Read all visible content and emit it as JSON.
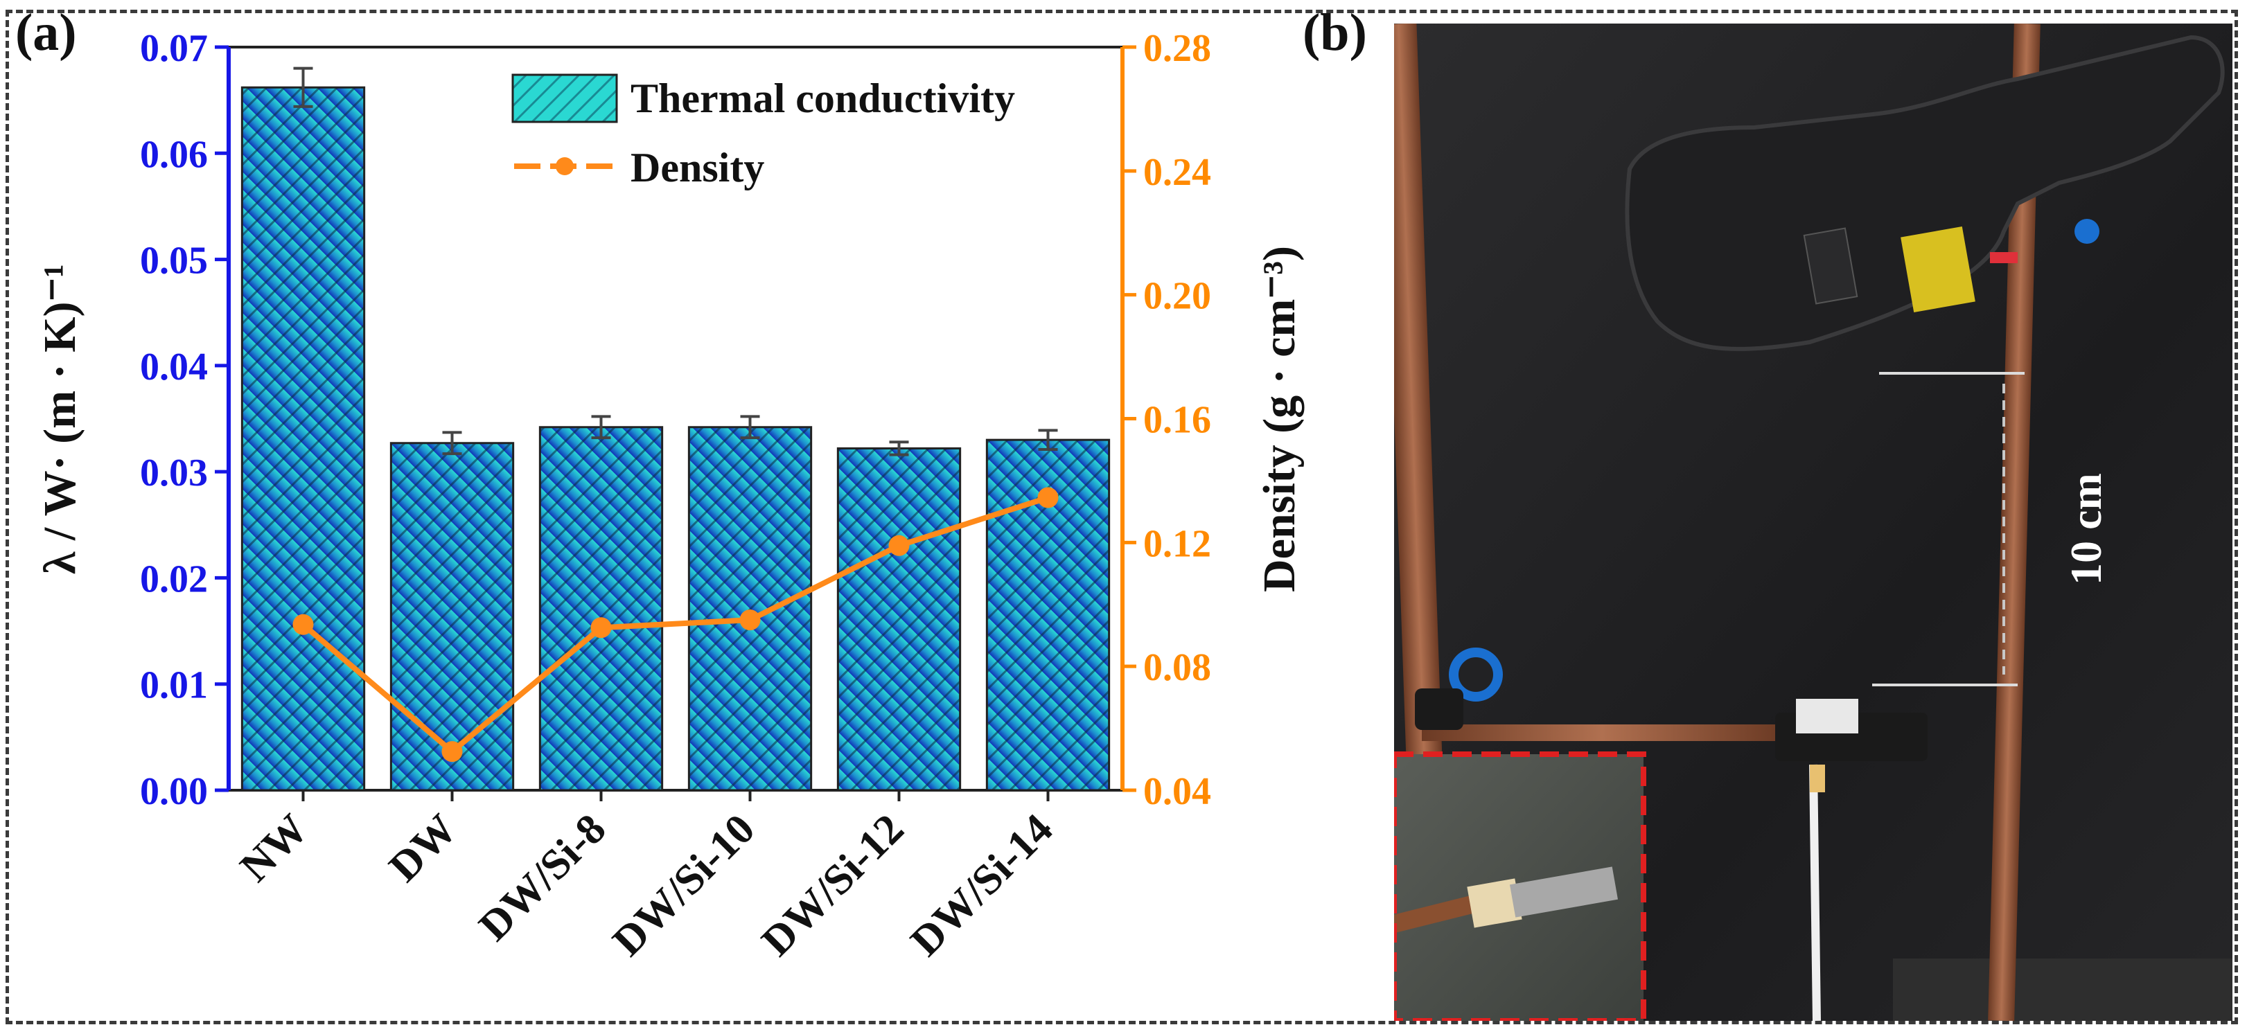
{
  "panels": {
    "a_label": "(a)",
    "b_label": "(b)"
  },
  "colors": {
    "bar_fill_top": "#2ad8d2",
    "bar_fill_bottom": "#1234b8",
    "bar_hatch": "#0a2a40",
    "left_axis": "#1616e6",
    "right_axis": "#ff8a00",
    "density_line": "#ff8a1a",
    "error_bar": "#444444"
  },
  "chart_data": {
    "type": "bar",
    "categories": [
      "NW",
      "DW",
      "DW/Si-8",
      "DW/Si-10",
      "DW/Si-12",
      "DW/Si-14"
    ],
    "series": [
      {
        "name": "Thermal conductivity",
        "type": "bar",
        "axis": "left",
        "values": [
          0.0662,
          0.0327,
          0.0342,
          0.0342,
          0.0322,
          0.033
        ],
        "errors": [
          0.0018,
          0.001,
          0.001,
          0.001,
          0.0006,
          0.0009
        ]
      },
      {
        "name": "Density",
        "type": "line",
        "axis": "right",
        "values": [
          0.0935,
          0.0525,
          0.0925,
          0.095,
          0.119,
          0.1345
        ]
      }
    ],
    "ylabel": "λ / W· (m · K)⁻¹",
    "y2label": "Density (g · cm⁻³)",
    "ylim": [
      0,
      0.07
    ],
    "y2lim": [
      0.04,
      0.28
    ],
    "yticks": [
      "0.00",
      "0.01",
      "0.02",
      "0.03",
      "0.04",
      "0.05",
      "0.06",
      "0.07"
    ],
    "y2ticks": [
      "0.04",
      "0.08",
      "0.12",
      "0.16",
      "0.20",
      "0.24",
      "0.28"
    ],
    "legend_position": "top-right",
    "grid": false
  },
  "photo": {
    "annotation": "10 cm",
    "icons": [
      "infrared-thermometer-icon",
      "sample-holder-icon",
      "thermocouple-inset-icon"
    ]
  }
}
